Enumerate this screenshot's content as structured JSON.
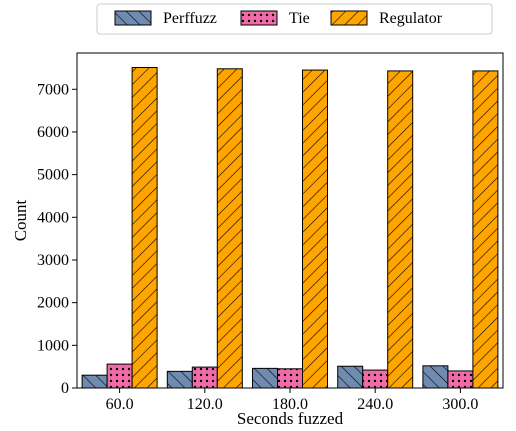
{
  "chart_data": {
    "type": "bar",
    "title": "",
    "xlabel": "Seconds fuzzed",
    "ylabel": "Count",
    "categories": [
      "60.0",
      "120.0",
      "180.0",
      "240.0",
      "300.0"
    ],
    "ylim": [
      0,
      7850
    ],
    "yticks": [
      0,
      1000,
      2000,
      3000,
      4000,
      5000,
      6000,
      7000
    ],
    "grid": false,
    "legend_position": "top, above plot",
    "series": [
      {
        "name": "Perffuzz",
        "values": [
          300,
          390,
          460,
          510,
          520
        ],
        "color": "#6f8bb0",
        "hatch": "backslash"
      },
      {
        "name": "Tie",
        "values": [
          560,
          490,
          450,
          420,
          400
        ],
        "color": "#f06ba8",
        "hatch": "dots"
      },
      {
        "name": "Regulator",
        "values": [
          7510,
          7480,
          7450,
          7430,
          7430
        ],
        "color": "#ffa500",
        "hatch": "slash"
      }
    ]
  }
}
